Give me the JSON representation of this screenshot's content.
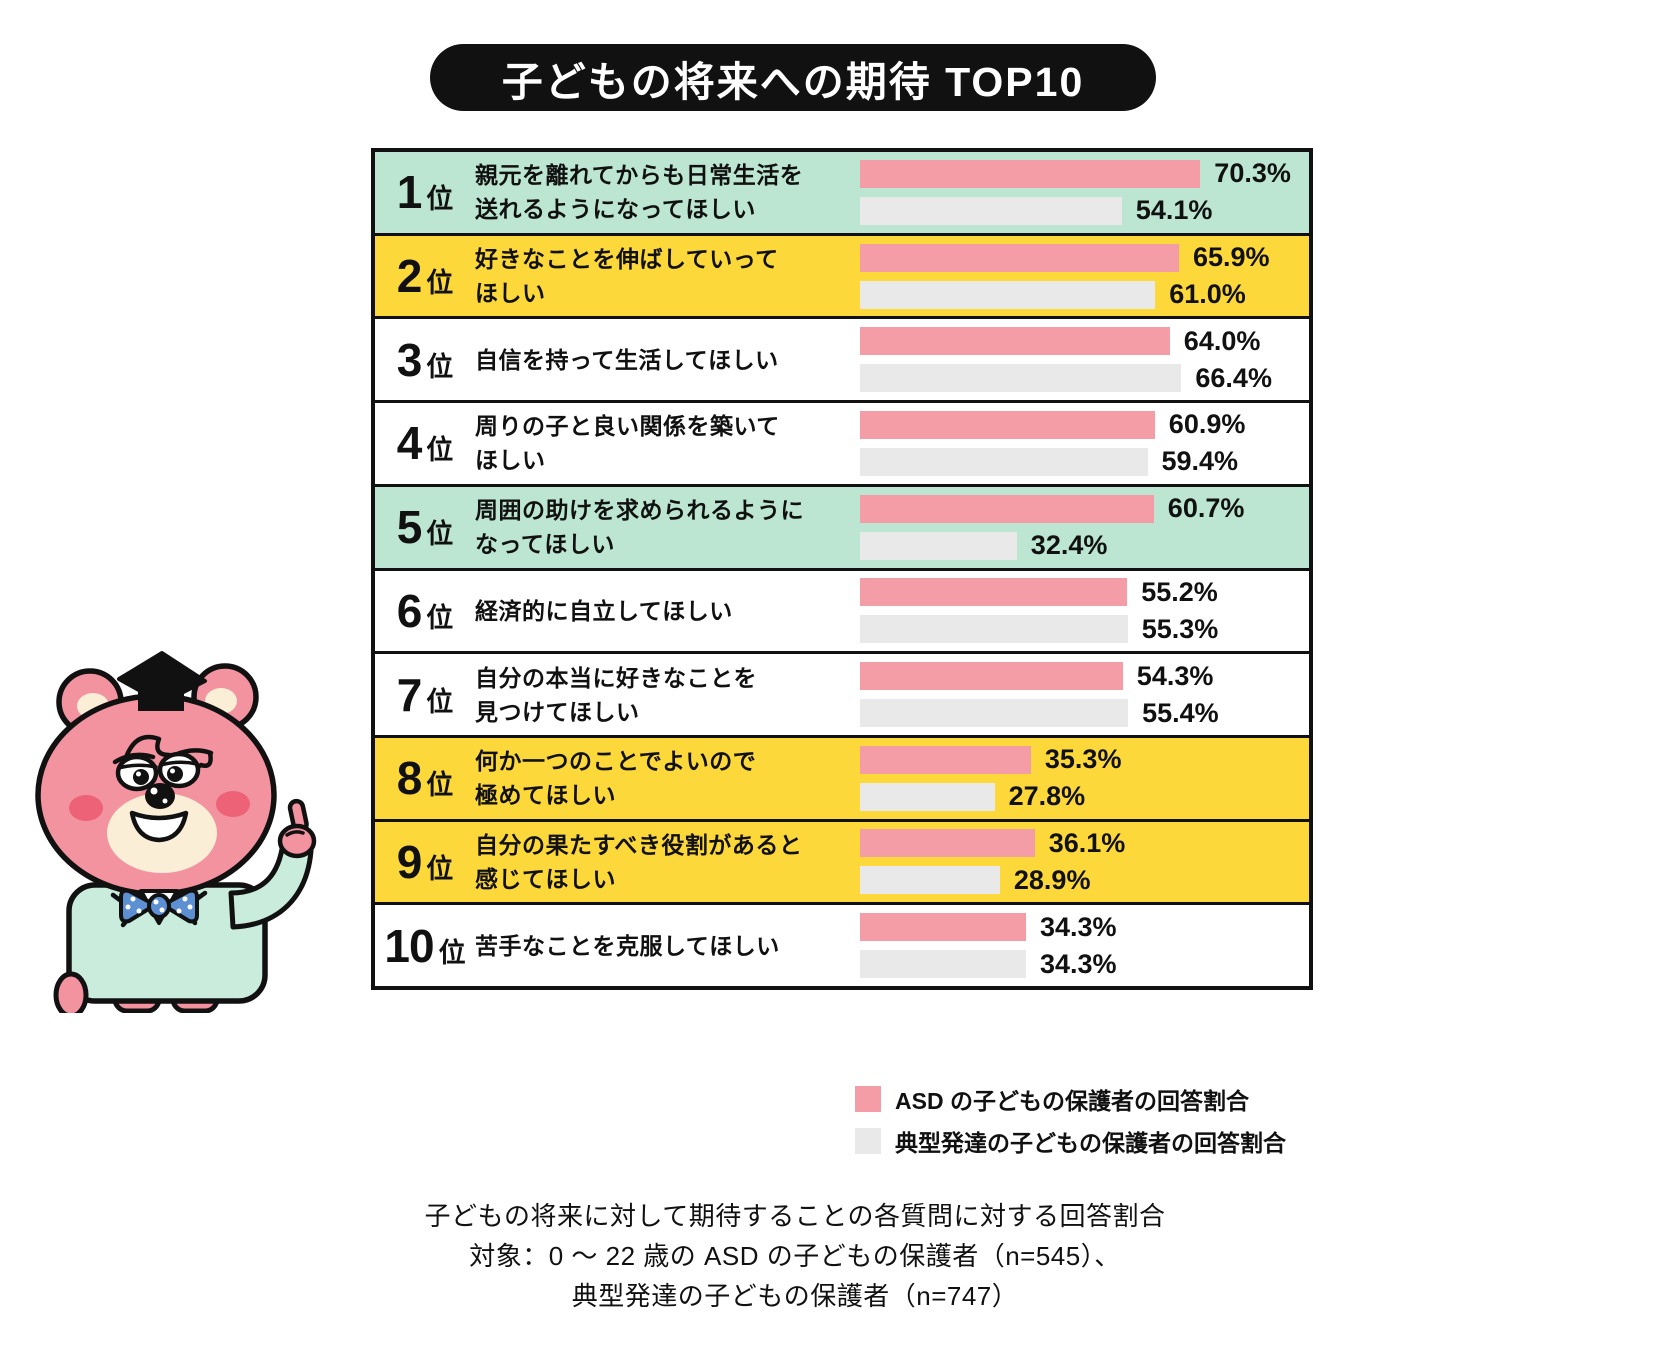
{
  "title": "子どもの将来への期待 TOP10",
  "colors": {
    "pink_bar": "#f49da6",
    "gray_bar": "#e9e9e9",
    "mint_row": "#bce6d2",
    "yellow_row": "#fdd83a",
    "banner_bg": "#111111"
  },
  "chart_data": {
    "type": "bar",
    "orientation": "horizontal",
    "title": "子どもの将来への期待 TOP10",
    "ranks": [
      "1位",
      "2位",
      "3位",
      "4位",
      "5位",
      "6位",
      "7位",
      "8位",
      "9位",
      "10位"
    ],
    "categories": [
      "親元を離れてからも日常生活を送れるようになってほしい",
      "好きなことを伸ばしていってほしい",
      "自信を持って生活してほしい",
      "周りの子と良い関係を築いてほしい",
      "周囲の助けを求められるようになってほしい",
      "経済的に自立してほしい",
      "自分の本当に好きなことを見つけてほしい",
      "何か一つのことでよいので極めてほしい",
      "自分の果たすべき役割があると感じてほしい",
      "苦手なことを克服してほしい"
    ],
    "series": [
      {
        "name": "ASD の子どもの保護者の回答割合",
        "color": "#f49da6",
        "values": [
          70.3,
          65.9,
          64.0,
          60.9,
          60.7,
          55.2,
          54.3,
          35.3,
          36.1,
          34.3
        ]
      },
      {
        "name": "典型発達の子どもの保護者の回答割合",
        "color": "#e9e9e9",
        "values": [
          54.1,
          61.0,
          66.4,
          59.4,
          32.4,
          55.3,
          55.4,
          27.8,
          28.9,
          34.3
        ]
      }
    ],
    "unit": "%",
    "xlim": [
      0,
      75
    ],
    "legend_position": "bottom-right",
    "grid": false
  },
  "rows": [
    {
      "rank": "1",
      "suffix": "位",
      "highlight": "mint",
      "label_lines": [
        "親元を離れてからも日常生活を",
        "送れるようになってほしい"
      ],
      "asd": 70.3,
      "asd_label": "70.3%",
      "typical": 54.1,
      "typical_label": "54.1%"
    },
    {
      "rank": "2",
      "suffix": "位",
      "highlight": "yellow",
      "label_lines": [
        "好きなことを伸ばしていって",
        "ほしい"
      ],
      "asd": 65.9,
      "asd_label": "65.9%",
      "typical": 61.0,
      "typical_label": "61.0%"
    },
    {
      "rank": "3",
      "suffix": "位",
      "highlight": "none",
      "label_lines": [
        "自信を持って生活してほしい"
      ],
      "asd": 64.0,
      "asd_label": "64.0%",
      "typical": 66.4,
      "typical_label": "66.4%"
    },
    {
      "rank": "4",
      "suffix": "位",
      "highlight": "none",
      "label_lines": [
        "周りの子と良い関係を築いて",
        "ほしい"
      ],
      "asd": 60.9,
      "asd_label": "60.9%",
      "typical": 59.4,
      "typical_label": "59.4%"
    },
    {
      "rank": "5",
      "suffix": "位",
      "highlight": "mint",
      "label_lines": [
        "周囲の助けを求められるように",
        "なってほしい"
      ],
      "asd": 60.7,
      "asd_label": "60.7%",
      "typical": 32.4,
      "typical_label": "32.4%"
    },
    {
      "rank": "6",
      "suffix": "位",
      "highlight": "none",
      "label_lines": [
        "経済的に自立してほしい"
      ],
      "asd": 55.2,
      "asd_label": "55.2%",
      "typical": 55.3,
      "typical_label": "55.3%"
    },
    {
      "rank": "7",
      "suffix": "位",
      "highlight": "none",
      "label_lines": [
        "自分の本当に好きなことを",
        "見つけてほしい"
      ],
      "asd": 54.3,
      "asd_label": "54.3%",
      "typical": 55.4,
      "typical_label": "55.4%"
    },
    {
      "rank": "8",
      "suffix": "位",
      "highlight": "yellow",
      "label_lines": [
        "何か一つのことでよいので",
        "極めてほしい"
      ],
      "asd": 35.3,
      "asd_label": "35.3%",
      "typical": 27.8,
      "typical_label": "27.8%"
    },
    {
      "rank": "9",
      "suffix": "位",
      "highlight": "yellow",
      "label_lines": [
        "自分の果たすべき役割があると",
        "感じてほしい"
      ],
      "asd": 36.1,
      "asd_label": "36.1%",
      "typical": 28.9,
      "typical_label": "28.9%"
    },
    {
      "rank": "10",
      "suffix": "位",
      "highlight": "none",
      "label_lines": [
        "苦手なことを克服してほしい"
      ],
      "asd": 34.3,
      "asd_label": "34.3%",
      "typical": 34.3,
      "typical_label": "34.3%"
    }
  ],
  "legend": [
    {
      "label": "ASD の子どもの保護者の回答割合",
      "color": "#f49da6"
    },
    {
      "label": "典型発達の子どもの保護者の回答割合",
      "color": "#e9e9e9"
    }
  ],
  "footnote": [
    "子どもの将来に対して期待することの各質問に対する回答割合",
    "対象：0 ～ 22 歳の ASD の子どもの保護者（n=545）、",
    "典型発達の子どもの保護者（n=747）"
  ],
  "mascot": {
    "icon": "graduate-bear-mascot"
  }
}
